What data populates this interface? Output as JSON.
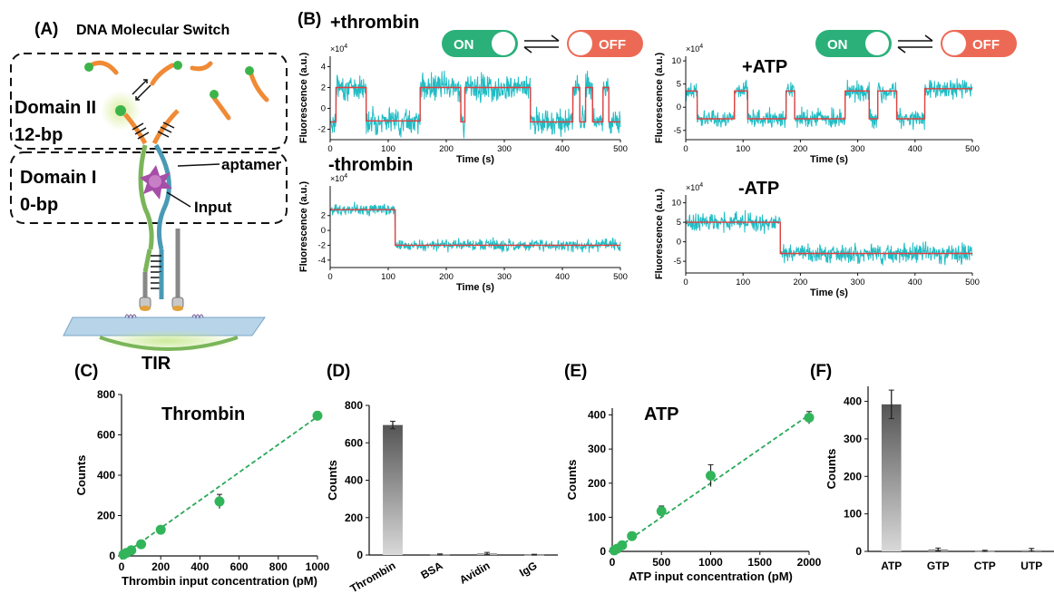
{
  "colors": {
    "trace": "#20bcc4",
    "fit": "#e04040",
    "green_point": "#32b55a",
    "fit_dashed": "#2ba85a",
    "on_switch": "#2bb07a",
    "off_switch": "#ec6a55",
    "orange_strand": "#f08a35",
    "aptamer_blue": "#4a9ab5",
    "aptamer_green": "#7ab55a",
    "input_purple": "#a64ea8",
    "bar_dark": "#555555",
    "bar_light": "#d9d9d9"
  },
  "panel_a": {
    "label": "(A)",
    "title": "DNA Molecular Switch",
    "domain2_name": "Domain II",
    "domain2_bp": "12-bp",
    "domain1_name": "Domain I",
    "domain1_bp": "0-bp",
    "aptamer": "aptamer",
    "input": "Input",
    "tir": "TIR"
  },
  "panel_b": {
    "label": "(B)",
    "on_label": "ON",
    "off_label": "OFF",
    "traces": [
      {
        "id": "plus-thrombin",
        "title": "+thrombin",
        "ylabel": "Fluorescence (a.u.)",
        "xlabel": "Time (s)",
        "exponent_base": "×10",
        "exponent_power": "4",
        "yticks": [
          "4",
          "2",
          "0",
          "-2"
        ],
        "xticks": [
          "0",
          "100",
          "200",
          "300",
          "400",
          "500"
        ],
        "xlim": [
          0,
          500
        ],
        "ylim": [
          -3,
          5
        ],
        "levels": [
          [
            0,
            10,
            -1.3
          ],
          [
            10,
            62,
            2
          ],
          [
            62,
            155,
            -1.2
          ],
          [
            155,
            225,
            2
          ],
          [
            225,
            232,
            -1.3
          ],
          [
            232,
            345,
            2
          ],
          [
            345,
            418,
            -1.3
          ],
          [
            418,
            430,
            2
          ],
          [
            430,
            440,
            -1.3
          ],
          [
            440,
            452,
            2
          ],
          [
            452,
            470,
            -1.3
          ],
          [
            470,
            480,
            2
          ],
          [
            480,
            500,
            -1.3
          ]
        ],
        "noise": 1.2
      },
      {
        "id": "plus-atp",
        "title": "+ATP",
        "ylabel": "Fluorescence (a.u.)",
        "xlabel": "Time (s)",
        "exponent_base": "×10",
        "exponent_power": "4",
        "yticks": [
          "10",
          "5",
          "0",
          "-5"
        ],
        "xticks": [
          "0",
          "100",
          "200",
          "300",
          "400",
          "500"
        ],
        "xlim": [
          0,
          500
        ],
        "ylim": [
          -7,
          11
        ],
        "levels": [
          [
            0,
            20,
            3.5
          ],
          [
            20,
            85,
            -2.5
          ],
          [
            85,
            108,
            3.5
          ],
          [
            108,
            175,
            -2.5
          ],
          [
            175,
            190,
            3.5
          ],
          [
            190,
            278,
            -2.5
          ],
          [
            278,
            320,
            3.5
          ],
          [
            320,
            335,
            -2.5
          ],
          [
            335,
            368,
            3.5
          ],
          [
            368,
            417,
            -2.5
          ],
          [
            417,
            500,
            4
          ]
        ],
        "noise": 2.0
      },
      {
        "id": "minus-thrombin",
        "title": "-thrombin",
        "ylabel": "Fluorescence (a.u.)",
        "xlabel": "Time (s)",
        "exponent_base": "×10",
        "exponent_power": "4",
        "yticks": [
          "2",
          "0",
          "-2",
          "-4"
        ],
        "xticks": [
          "0",
          "100",
          "200",
          "300",
          "400",
          "500"
        ],
        "xlim": [
          0,
          500
        ],
        "ylim": [
          -5,
          6
        ],
        "levels": [
          [
            0,
            112,
            2.8
          ],
          [
            112,
            500,
            -2
          ]
        ],
        "noise": 0.8
      },
      {
        "id": "minus-atp",
        "title": "-ATP",
        "ylabel": "Fluorescence (a.u.)",
        "xlabel": "Time (s)",
        "exponent_base": "×10",
        "exponent_power": "4",
        "yticks": [
          "10",
          "5",
          "0",
          "-5"
        ],
        "xticks": [
          "0",
          "100",
          "200",
          "300",
          "400",
          "500"
        ],
        "xlim": [
          0,
          500
        ],
        "ylim": [
          -8,
          12
        ],
        "levels": [
          [
            0,
            165,
            5
          ],
          [
            165,
            500,
            -3
          ]
        ],
        "noise": 2.3
      }
    ]
  },
  "panel_c": {
    "label": "(C)",
    "title": "Thrombin",
    "ylabel": "Counts",
    "xlabel": "Thrombin input concentration (pM)"
  },
  "panel_d": {
    "label": "(D)",
    "ylabel": "Counts"
  },
  "panel_e": {
    "label": "(E)",
    "title": "ATP",
    "ylabel": "Counts",
    "xlabel": "ATP input concentration (pM)"
  },
  "panel_f": {
    "label": "(F)",
    "ylabel": "Counts"
  },
  "chart_data": [
    {
      "id": "C",
      "type": "scatter",
      "title": "Thrombin",
      "xlabel": "Thrombin input concentration (pM)",
      "ylabel": "Counts",
      "xlim": [
        0,
        1000
      ],
      "ylim": [
        0,
        800
      ],
      "xticks": [
        "0",
        "200",
        "400",
        "600",
        "800",
        "1000"
      ],
      "yticks": [
        "0",
        "200",
        "400",
        "600",
        "800"
      ],
      "x": [
        10,
        25,
        50,
        100,
        200,
        500,
        1000
      ],
      "y": [
        7,
        15,
        28,
        58,
        130,
        270,
        695
      ],
      "err": [
        3,
        4,
        5,
        8,
        10,
        35,
        20
      ],
      "fit_line": [
        [
          0,
          0
        ],
        [
          1000,
          690
        ]
      ]
    },
    {
      "id": "D",
      "type": "bar",
      "ylabel": "Counts",
      "ylim": [
        0,
        800
      ],
      "categories": [
        "Thrombin",
        "BSA",
        "Avidin",
        "IgG"
      ],
      "yticks": [
        "0",
        "200",
        "400",
        "600",
        "800"
      ],
      "values": [
        695,
        3,
        8,
        2
      ],
      "err": [
        20,
        3,
        6,
        2
      ]
    },
    {
      "id": "E",
      "type": "scatter",
      "title": "ATP",
      "xlabel": "ATP input concentration (pM)",
      "ylabel": "Counts",
      "xlim": [
        0,
        2000
      ],
      "ylim": [
        0,
        420
      ],
      "xticks": [
        "0",
        "500",
        "1000",
        "1500",
        "2000"
      ],
      "yticks": [
        "0",
        "100",
        "200",
        "300",
        "400"
      ],
      "x": [
        20,
        50,
        100,
        200,
        500,
        1000,
        2000
      ],
      "y": [
        3,
        8,
        18,
        45,
        118,
        222,
        392
      ],
      "err": [
        2,
        3,
        4,
        6,
        15,
        32,
        18
      ],
      "fit_line": [
        [
          0,
          0
        ],
        [
          2000,
          400
        ]
      ]
    },
    {
      "id": "F",
      "type": "bar",
      "ylabel": "Counts",
      "ylim": [
        0,
        440
      ],
      "categories": [
        "ATP",
        "GTP",
        "CTP",
        "UTP"
      ],
      "yticks": [
        "0",
        "100",
        "200",
        "300",
        "400"
      ],
      "values": [
        392,
        5,
        1,
        3
      ],
      "err": [
        38,
        4,
        2,
        5
      ]
    }
  ]
}
